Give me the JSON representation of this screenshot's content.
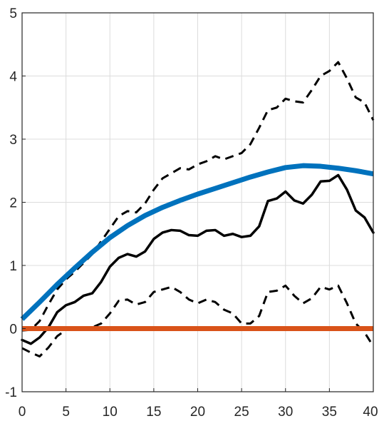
{
  "chart_data": {
    "type": "line",
    "title": "",
    "xlabel": "",
    "ylabel": "",
    "xlim": [
      0,
      40
    ],
    "ylim": [
      -1,
      5
    ],
    "xticks": [
      0,
      5,
      10,
      15,
      20,
      25,
      30,
      35,
      40
    ],
    "yticks": [
      -1,
      0,
      1,
      2,
      3,
      4,
      5
    ],
    "grid": true,
    "legend": "none",
    "series": [
      {
        "key": "smooth",
        "color": "#0072BD",
        "style": "solid-thick",
        "x": [
          0,
          2,
          4,
          6,
          8,
          10,
          12,
          14,
          16,
          18,
          20,
          22,
          24,
          26,
          28,
          30,
          32,
          34,
          36,
          38,
          40
        ],
        "y": [
          0.15,
          0.42,
          0.7,
          0.96,
          1.21,
          1.44,
          1.63,
          1.79,
          1.92,
          2.03,
          2.13,
          2.22,
          2.31,
          2.4,
          2.48,
          2.55,
          2.58,
          2.57,
          2.54,
          2.5,
          2.45
        ]
      },
      {
        "key": "estimate",
        "color": "#000000",
        "style": "solid",
        "x": [
          0,
          1,
          2,
          3,
          4,
          5,
          6,
          7,
          8,
          9,
          10,
          11,
          12,
          13,
          14,
          15,
          16,
          17,
          18,
          19,
          20,
          21,
          22,
          23,
          24,
          25,
          26,
          27,
          28,
          29,
          30,
          31,
          32,
          33,
          34,
          35,
          36,
          37,
          38,
          39,
          40
        ],
        "y": [
          -0.18,
          -0.24,
          -0.14,
          0.02,
          0.26,
          0.37,
          0.42,
          0.52,
          0.56,
          0.74,
          0.98,
          1.12,
          1.18,
          1.14,
          1.22,
          1.42,
          1.52,
          1.56,
          1.55,
          1.48,
          1.47,
          1.55,
          1.56,
          1.47,
          1.5,
          1.45,
          1.47,
          1.62,
          2.02,
          2.06,
          2.17,
          2.03,
          1.98,
          2.12,
          2.33,
          2.34,
          2.43,
          2.2,
          1.87,
          1.76,
          1.52
        ]
      },
      {
        "key": "upper-band",
        "color": "#000000",
        "style": "dashed",
        "x": [
          0,
          1,
          2,
          3,
          4,
          5,
          6,
          7,
          8,
          9,
          10,
          11,
          12,
          13,
          14,
          15,
          16,
          17,
          18,
          19,
          20,
          21,
          22,
          23,
          24,
          25,
          26,
          27,
          28,
          29,
          30,
          31,
          32,
          33,
          34,
          35,
          36,
          37,
          38,
          39,
          40
        ],
        "y": [
          -0.03,
          -0.02,
          0.12,
          0.38,
          0.62,
          0.78,
          0.9,
          1.04,
          1.18,
          1.38,
          1.58,
          1.78,
          1.86,
          1.84,
          1.98,
          2.2,
          2.38,
          2.46,
          2.54,
          2.52,
          2.6,
          2.65,
          2.73,
          2.68,
          2.73,
          2.78,
          2.92,
          3.18,
          3.46,
          3.5,
          3.64,
          3.6,
          3.58,
          3.78,
          4.0,
          4.08,
          4.22,
          3.96,
          3.66,
          3.58,
          3.3
        ]
      },
      {
        "key": "lower-band",
        "color": "#000000",
        "style": "dashed",
        "x": [
          0,
          1,
          2,
          3,
          4,
          5,
          6,
          7,
          8,
          9,
          10,
          11,
          12,
          13,
          14,
          15,
          16,
          17,
          18,
          19,
          20,
          21,
          22,
          23,
          24,
          25,
          26,
          27,
          28,
          29,
          30,
          31,
          32,
          33,
          34,
          35,
          36,
          37,
          38,
          39,
          40
        ],
        "y": [
          -0.31,
          -0.38,
          -0.44,
          -0.3,
          -0.12,
          -0.02,
          -0.02,
          -0.01,
          0.02,
          0.08,
          0.24,
          0.44,
          0.46,
          0.38,
          0.42,
          0.58,
          0.62,
          0.66,
          0.58,
          0.46,
          0.4,
          0.46,
          0.42,
          0.3,
          0.24,
          0.08,
          0.08,
          0.2,
          0.58,
          0.6,
          0.68,
          0.52,
          0.4,
          0.48,
          0.66,
          0.62,
          0.68,
          0.4,
          0.08,
          -0.06,
          -0.28
        ]
      },
      {
        "key": "zero",
        "color": "#D95319",
        "style": "solid-thick",
        "x": [
          0,
          40
        ],
        "y": [
          0,
          0
        ]
      }
    ]
  }
}
